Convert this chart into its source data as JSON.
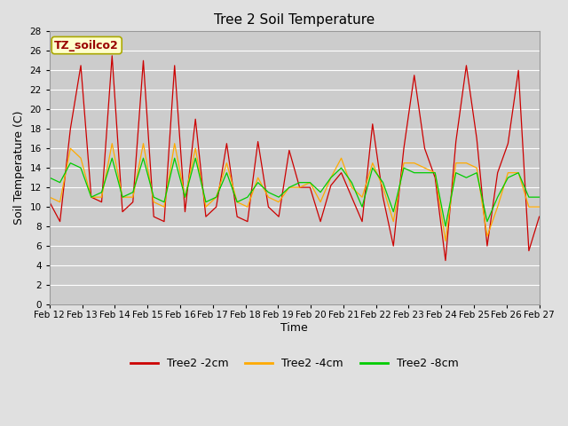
{
  "title": "Tree 2 Soil Temperature",
  "xlabel": "Time",
  "ylabel": "Soil Temperature (C)",
  "annotation": "TZ_soilco2",
  "ylim": [
    0,
    28
  ],
  "background_color": "#e0e0e0",
  "plot_bg_color": "#cccccc",
  "grid_color": "#ffffff",
  "tick_labels": [
    "Feb 12",
    "Feb 13",
    "Feb 14",
    "Feb 15",
    "Feb 16",
    "Feb 17",
    "Feb 18",
    "Feb 19",
    "Feb 20",
    "Feb 21",
    "Feb 22",
    "Feb 23",
    "Feb 24",
    "Feb 25",
    "Feb 26",
    "Feb 27"
  ],
  "series": {
    "Tree2 -2cm": {
      "color": "#cc0000",
      "values": [
        10.5,
        8.5,
        18.0,
        24.5,
        11.0,
        10.5,
        25.5,
        9.5,
        10.5,
        25.0,
        9.0,
        8.5,
        24.5,
        9.5,
        19.0,
        9.0,
        10.0,
        16.5,
        9.0,
        8.5,
        16.7,
        10.0,
        9.0,
        15.8,
        12.0,
        12.0,
        8.5,
        12.2,
        13.5,
        11.0,
        8.5,
        18.5,
        11.0,
        6.0,
        16.0,
        23.5,
        16.0,
        13.0,
        4.5,
        16.7,
        24.5,
        17.0,
        6.0,
        13.5,
        16.5,
        24.0,
        5.5,
        9.0
      ]
    },
    "Tree2 -4cm": {
      "color": "#ffaa00",
      "values": [
        11.0,
        10.5,
        16.0,
        15.0,
        11.0,
        11.0,
        16.5,
        11.0,
        11.0,
        16.5,
        10.5,
        10.0,
        16.5,
        11.0,
        16.0,
        10.0,
        11.0,
        14.5,
        10.5,
        10.0,
        13.0,
        11.0,
        10.5,
        12.0,
        12.0,
        12.5,
        10.5,
        13.0,
        15.0,
        12.0,
        11.0,
        14.5,
        12.0,
        8.5,
        14.5,
        14.5,
        14.0,
        13.5,
        6.5,
        14.5,
        14.5,
        14.0,
        7.0,
        10.0,
        13.5,
        13.5,
        10.0,
        10.0
      ]
    },
    "Tree2 -8cm": {
      "color": "#00cc00",
      "values": [
        13.0,
        12.5,
        14.5,
        14.0,
        11.0,
        11.5,
        15.0,
        11.0,
        11.5,
        15.0,
        11.0,
        10.5,
        15.0,
        11.0,
        15.0,
        10.5,
        11.0,
        13.5,
        10.5,
        11.0,
        12.5,
        11.5,
        11.0,
        12.0,
        12.5,
        12.5,
        11.5,
        13.0,
        14.0,
        12.5,
        10.0,
        14.0,
        12.5,
        9.5,
        14.0,
        13.5,
        13.5,
        13.5,
        8.0,
        13.5,
        13.0,
        13.5,
        8.5,
        11.0,
        13.0,
        13.5,
        11.0,
        11.0
      ]
    }
  },
  "legend_labels": [
    "Tree2 -2cm",
    "Tree2 -4cm",
    "Tree2 -8cm"
  ],
  "legend_colors": [
    "#cc0000",
    "#ffaa00",
    "#00cc00"
  ]
}
